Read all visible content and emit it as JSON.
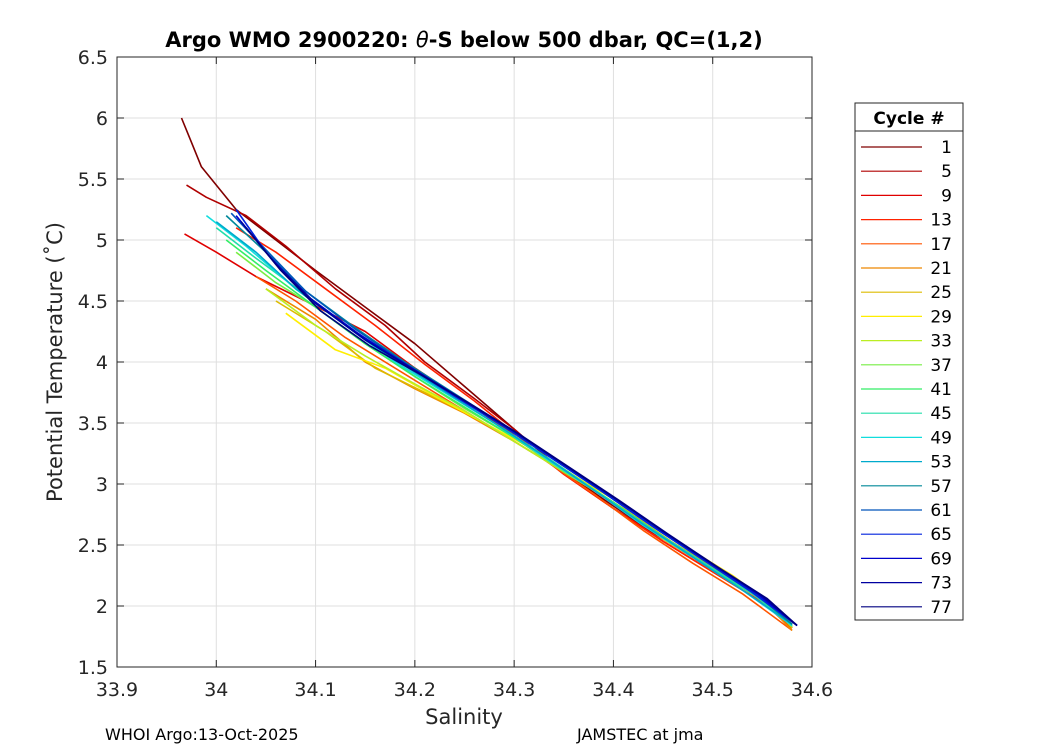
{
  "chart_data": {
    "type": "line",
    "title_prefix": "Argo WMO 2900220: ",
    "title_theta": "θ",
    "title_suffix": "-S below 500 dbar,  QC=(1,2)",
    "xlabel": "Salinity",
    "ylabel": "Potential Temperature (˚C)",
    "xlim": [
      33.9,
      34.6
    ],
    "ylim": [
      1.5,
      6.5
    ],
    "xticks": [
      33.9,
      34.0,
      34.1,
      34.2,
      34.3,
      34.4,
      34.5,
      34.6
    ],
    "xtick_labels": [
      "33.9",
      "34",
      "34.1",
      "34.2",
      "34.3",
      "34.4",
      "34.5",
      "34.6"
    ],
    "yticks": [
      1.5,
      2,
      2.5,
      3,
      3.5,
      4,
      4.5,
      5,
      5.5,
      6,
      6.5
    ],
    "ytick_labels": [
      "1.5",
      "2",
      "2.5",
      "3",
      "3.5",
      "4",
      "4.5",
      "5",
      "5.5",
      "6",
      "6.5"
    ],
    "grid": true,
    "legend_title": "Cycle #",
    "legend_position": "right",
    "legend": [
      {
        "label": "1",
        "color": "#800000"
      },
      {
        "label": "5",
        "color": "#b00000"
      },
      {
        "label": "9",
        "color": "#e00000"
      },
      {
        "label": "13",
        "color": "#ff2200"
      },
      {
        "label": "17",
        "color": "#ff5500"
      },
      {
        "label": "21",
        "color": "#ee8800"
      },
      {
        "label": "25",
        "color": "#ddbb00"
      },
      {
        "label": "29",
        "color": "#ffee00"
      },
      {
        "label": "33",
        "color": "#bbee22"
      },
      {
        "label": "37",
        "color": "#77ee44"
      },
      {
        "label": "41",
        "color": "#33ee66"
      },
      {
        "label": "45",
        "color": "#22ddaa"
      },
      {
        "label": "49",
        "color": "#11dddd"
      },
      {
        "label": "53",
        "color": "#00aacc"
      },
      {
        "label": "57",
        "color": "#008899"
      },
      {
        "label": "61",
        "color": "#0055bb"
      },
      {
        "label": "65",
        "color": "#0022dd"
      },
      {
        "label": "69",
        "color": "#0000cc"
      },
      {
        "label": "73",
        "color": "#0000a0"
      },
      {
        "label": "77",
        "color": "#000080"
      }
    ],
    "series": [
      {
        "name": "1",
        "color": "#800000",
        "x": [
          33.965,
          33.975,
          33.985,
          34.02,
          34.06,
          34.1,
          34.15,
          34.2,
          34.25,
          34.3,
          34.35,
          34.4,
          34.45,
          34.5,
          34.55,
          34.58
        ],
        "y": [
          6.0,
          5.8,
          5.6,
          5.25,
          5.0,
          4.75,
          4.45,
          4.15,
          3.8,
          3.45,
          3.1,
          2.82,
          2.55,
          2.3,
          2.05,
          1.85
        ]
      },
      {
        "name": "5",
        "color": "#b00000",
        "x": [
          33.97,
          33.99,
          34.03,
          34.07,
          34.12,
          34.17,
          34.21,
          34.26,
          34.3,
          34.35,
          34.4,
          34.45,
          34.5,
          34.55,
          34.58
        ],
        "y": [
          5.45,
          5.35,
          5.2,
          4.95,
          4.6,
          4.3,
          4.0,
          3.7,
          3.45,
          3.1,
          2.8,
          2.55,
          2.3,
          2.05,
          1.83
        ]
      },
      {
        "name": "9",
        "color": "#e00000",
        "x": [
          33.968,
          34.0,
          34.04,
          34.09,
          34.15,
          34.2,
          34.25,
          34.3,
          34.35,
          34.4,
          34.45,
          34.5,
          34.55,
          34.58
        ],
        "y": [
          5.05,
          4.9,
          4.7,
          4.5,
          4.25,
          3.95,
          3.68,
          3.4,
          3.08,
          2.8,
          2.53,
          2.28,
          2.03,
          1.82
        ]
      },
      {
        "name": "13",
        "color": "#ff2200",
        "x": [
          34.02,
          34.06,
          34.11,
          34.16,
          34.21,
          34.26,
          34.3,
          34.35,
          34.4,
          34.45,
          34.5,
          34.55,
          34.58
        ],
        "y": [
          5.1,
          4.9,
          4.6,
          4.3,
          3.98,
          3.68,
          3.42,
          3.08,
          2.8,
          2.53,
          2.28,
          2.03,
          1.82
        ]
      },
      {
        "name": "17",
        "color": "#ff5500",
        "x": [
          34.04,
          34.08,
          34.13,
          34.18,
          34.23,
          34.28,
          34.33,
          34.38,
          34.43,
          34.48,
          34.53,
          34.58
        ],
        "y": [
          4.7,
          4.5,
          4.2,
          3.95,
          3.7,
          3.45,
          3.2,
          2.92,
          2.62,
          2.35,
          2.1,
          1.8
        ]
      },
      {
        "name": "21",
        "color": "#ee8800",
        "x": [
          34.05,
          34.1,
          34.15,
          34.2,
          34.25,
          34.3,
          34.35,
          34.4,
          34.45,
          34.5,
          34.55,
          34.58
        ],
        "y": [
          4.6,
          4.35,
          4.0,
          3.78,
          3.58,
          3.35,
          3.1,
          2.85,
          2.55,
          2.3,
          2.05,
          1.8
        ]
      },
      {
        "name": "25",
        "color": "#ddbb00",
        "x": [
          34.06,
          34.11,
          34.16,
          34.21,
          34.26,
          34.31,
          34.36,
          34.41,
          34.46,
          34.51,
          34.56,
          34.58
        ],
        "y": [
          4.5,
          4.25,
          3.95,
          3.75,
          3.55,
          3.3,
          3.05,
          2.8,
          2.52,
          2.27,
          2.0,
          1.82
        ]
      },
      {
        "name": "29",
        "color": "#ffee00",
        "x": [
          34.07,
          34.12,
          34.17,
          34.22,
          34.27,
          34.32,
          34.37,
          34.42,
          34.47,
          34.52,
          34.57
        ],
        "y": [
          4.4,
          4.1,
          3.95,
          3.72,
          3.5,
          3.28,
          3.02,
          2.78,
          2.5,
          2.25,
          1.95
        ]
      },
      {
        "name": "33",
        "color": "#bbee22",
        "x": [
          34.05,
          34.1,
          34.15,
          34.2,
          34.25,
          34.3,
          34.35,
          34.4,
          34.45,
          34.5,
          34.55,
          34.58
        ],
        "y": [
          4.6,
          4.3,
          4.05,
          3.82,
          3.6,
          3.35,
          3.1,
          2.85,
          2.55,
          2.3,
          2.05,
          1.85
        ]
      },
      {
        "name": "37",
        "color": "#77ee44",
        "x": [
          34.02,
          34.06,
          34.1,
          34.15,
          34.2,
          34.25,
          34.3,
          34.35,
          34.4,
          34.45,
          34.5,
          34.55,
          34.58
        ],
        "y": [
          4.9,
          4.65,
          4.45,
          4.15,
          3.88,
          3.62,
          3.38,
          3.1,
          2.85,
          2.56,
          2.3,
          2.05,
          1.83
        ]
      },
      {
        "name": "41",
        "color": "#33ee66",
        "x": [
          34.01,
          34.05,
          34.1,
          34.15,
          34.2,
          34.25,
          34.3,
          34.35,
          34.4,
          34.45,
          34.5,
          34.55,
          34.58
        ],
        "y": [
          5.0,
          4.75,
          4.45,
          4.15,
          3.88,
          3.63,
          3.38,
          3.12,
          2.85,
          2.57,
          2.3,
          2.05,
          1.84
        ]
      },
      {
        "name": "45",
        "color": "#22ddaa",
        "x": [
          34.0,
          34.04,
          34.09,
          34.14,
          34.19,
          34.24,
          34.29,
          34.34,
          34.39,
          34.44,
          34.49,
          34.54,
          34.58
        ],
        "y": [
          5.1,
          4.85,
          4.55,
          4.25,
          3.95,
          3.7,
          3.45,
          3.18,
          2.9,
          2.62,
          2.36,
          2.1,
          1.84
        ]
      },
      {
        "name": "49",
        "color": "#11dddd",
        "x": [
          33.99,
          34.03,
          34.08,
          34.13,
          34.18,
          34.23,
          34.28,
          34.33,
          34.38,
          34.43,
          34.48,
          34.53,
          34.58
        ],
        "y": [
          5.2,
          4.95,
          4.6,
          4.3,
          4.0,
          3.75,
          3.5,
          3.22,
          2.95,
          2.66,
          2.4,
          2.13,
          1.84
        ]
      },
      {
        "name": "53",
        "color": "#00aacc",
        "x": [
          34.0,
          34.04,
          34.08,
          34.13,
          34.18,
          34.23,
          34.28,
          34.33,
          34.38,
          34.43,
          34.48,
          34.53,
          34.58
        ],
        "y": [
          5.15,
          4.9,
          4.6,
          4.3,
          4.02,
          3.76,
          3.5,
          3.23,
          2.95,
          2.67,
          2.4,
          2.13,
          1.85
        ]
      },
      {
        "name": "57",
        "color": "#008899",
        "x": [
          34.01,
          34.05,
          34.09,
          34.14,
          34.19,
          34.24,
          34.29,
          34.34,
          34.39,
          34.44,
          34.49,
          34.54,
          34.58
        ],
        "y": [
          5.2,
          4.9,
          4.58,
          4.28,
          4.0,
          3.74,
          3.48,
          3.2,
          2.93,
          2.65,
          2.38,
          2.12,
          1.85
        ]
      },
      {
        "name": "61",
        "color": "#0055bb",
        "x": [
          34.015,
          34.05,
          34.09,
          34.14,
          34.19,
          34.24,
          34.29,
          34.34,
          34.39,
          34.44,
          34.49,
          34.54,
          34.585
        ],
        "y": [
          5.22,
          4.92,
          4.58,
          4.27,
          3.99,
          3.73,
          3.47,
          3.2,
          2.93,
          2.65,
          2.38,
          2.12,
          1.84
        ]
      },
      {
        "name": "65",
        "color": "#0022dd",
        "x": [
          34.02,
          34.05,
          34.09,
          34.14,
          34.19,
          34.24,
          34.29,
          34.34,
          34.39,
          34.44,
          34.49,
          34.54,
          34.585
        ],
        "y": [
          5.25,
          4.9,
          4.55,
          4.25,
          3.98,
          3.72,
          3.47,
          3.2,
          2.93,
          2.65,
          2.38,
          2.11,
          1.84
        ]
      },
      {
        "name": "69",
        "color": "#0000cc",
        "x": [
          34.02,
          34.055,
          34.095,
          34.145,
          34.195,
          34.245,
          34.295,
          34.345,
          34.395,
          34.445,
          34.495,
          34.545,
          34.585
        ],
        "y": [
          5.2,
          4.85,
          4.52,
          4.22,
          3.96,
          3.71,
          3.46,
          3.19,
          2.92,
          2.64,
          2.37,
          2.1,
          1.84
        ]
      },
      {
        "name": "73",
        "color": "#0000a0",
        "x": [
          34.025,
          34.06,
          34.1,
          34.15,
          34.2,
          34.25,
          34.3,
          34.35,
          34.4,
          34.45,
          34.5,
          34.55,
          34.585
        ],
        "y": [
          5.15,
          4.8,
          4.48,
          4.18,
          3.93,
          3.68,
          3.43,
          3.16,
          2.89,
          2.61,
          2.34,
          2.08,
          1.84
        ]
      },
      {
        "name": "77",
        "color": "#000080",
        "x": [
          34.03,
          34.065,
          34.105,
          34.155,
          34.205,
          34.255,
          34.305,
          34.355,
          34.405,
          34.455,
          34.505,
          34.555,
          34.585
        ],
        "y": [
          5.1,
          4.75,
          4.42,
          4.13,
          3.9,
          3.66,
          3.41,
          3.14,
          2.87,
          2.59,
          2.32,
          2.06,
          1.84
        ]
      }
    ]
  },
  "footer": {
    "left": "WHOI Argo:13-Oct-2025",
    "right": "JAMSTEC at jma"
  }
}
